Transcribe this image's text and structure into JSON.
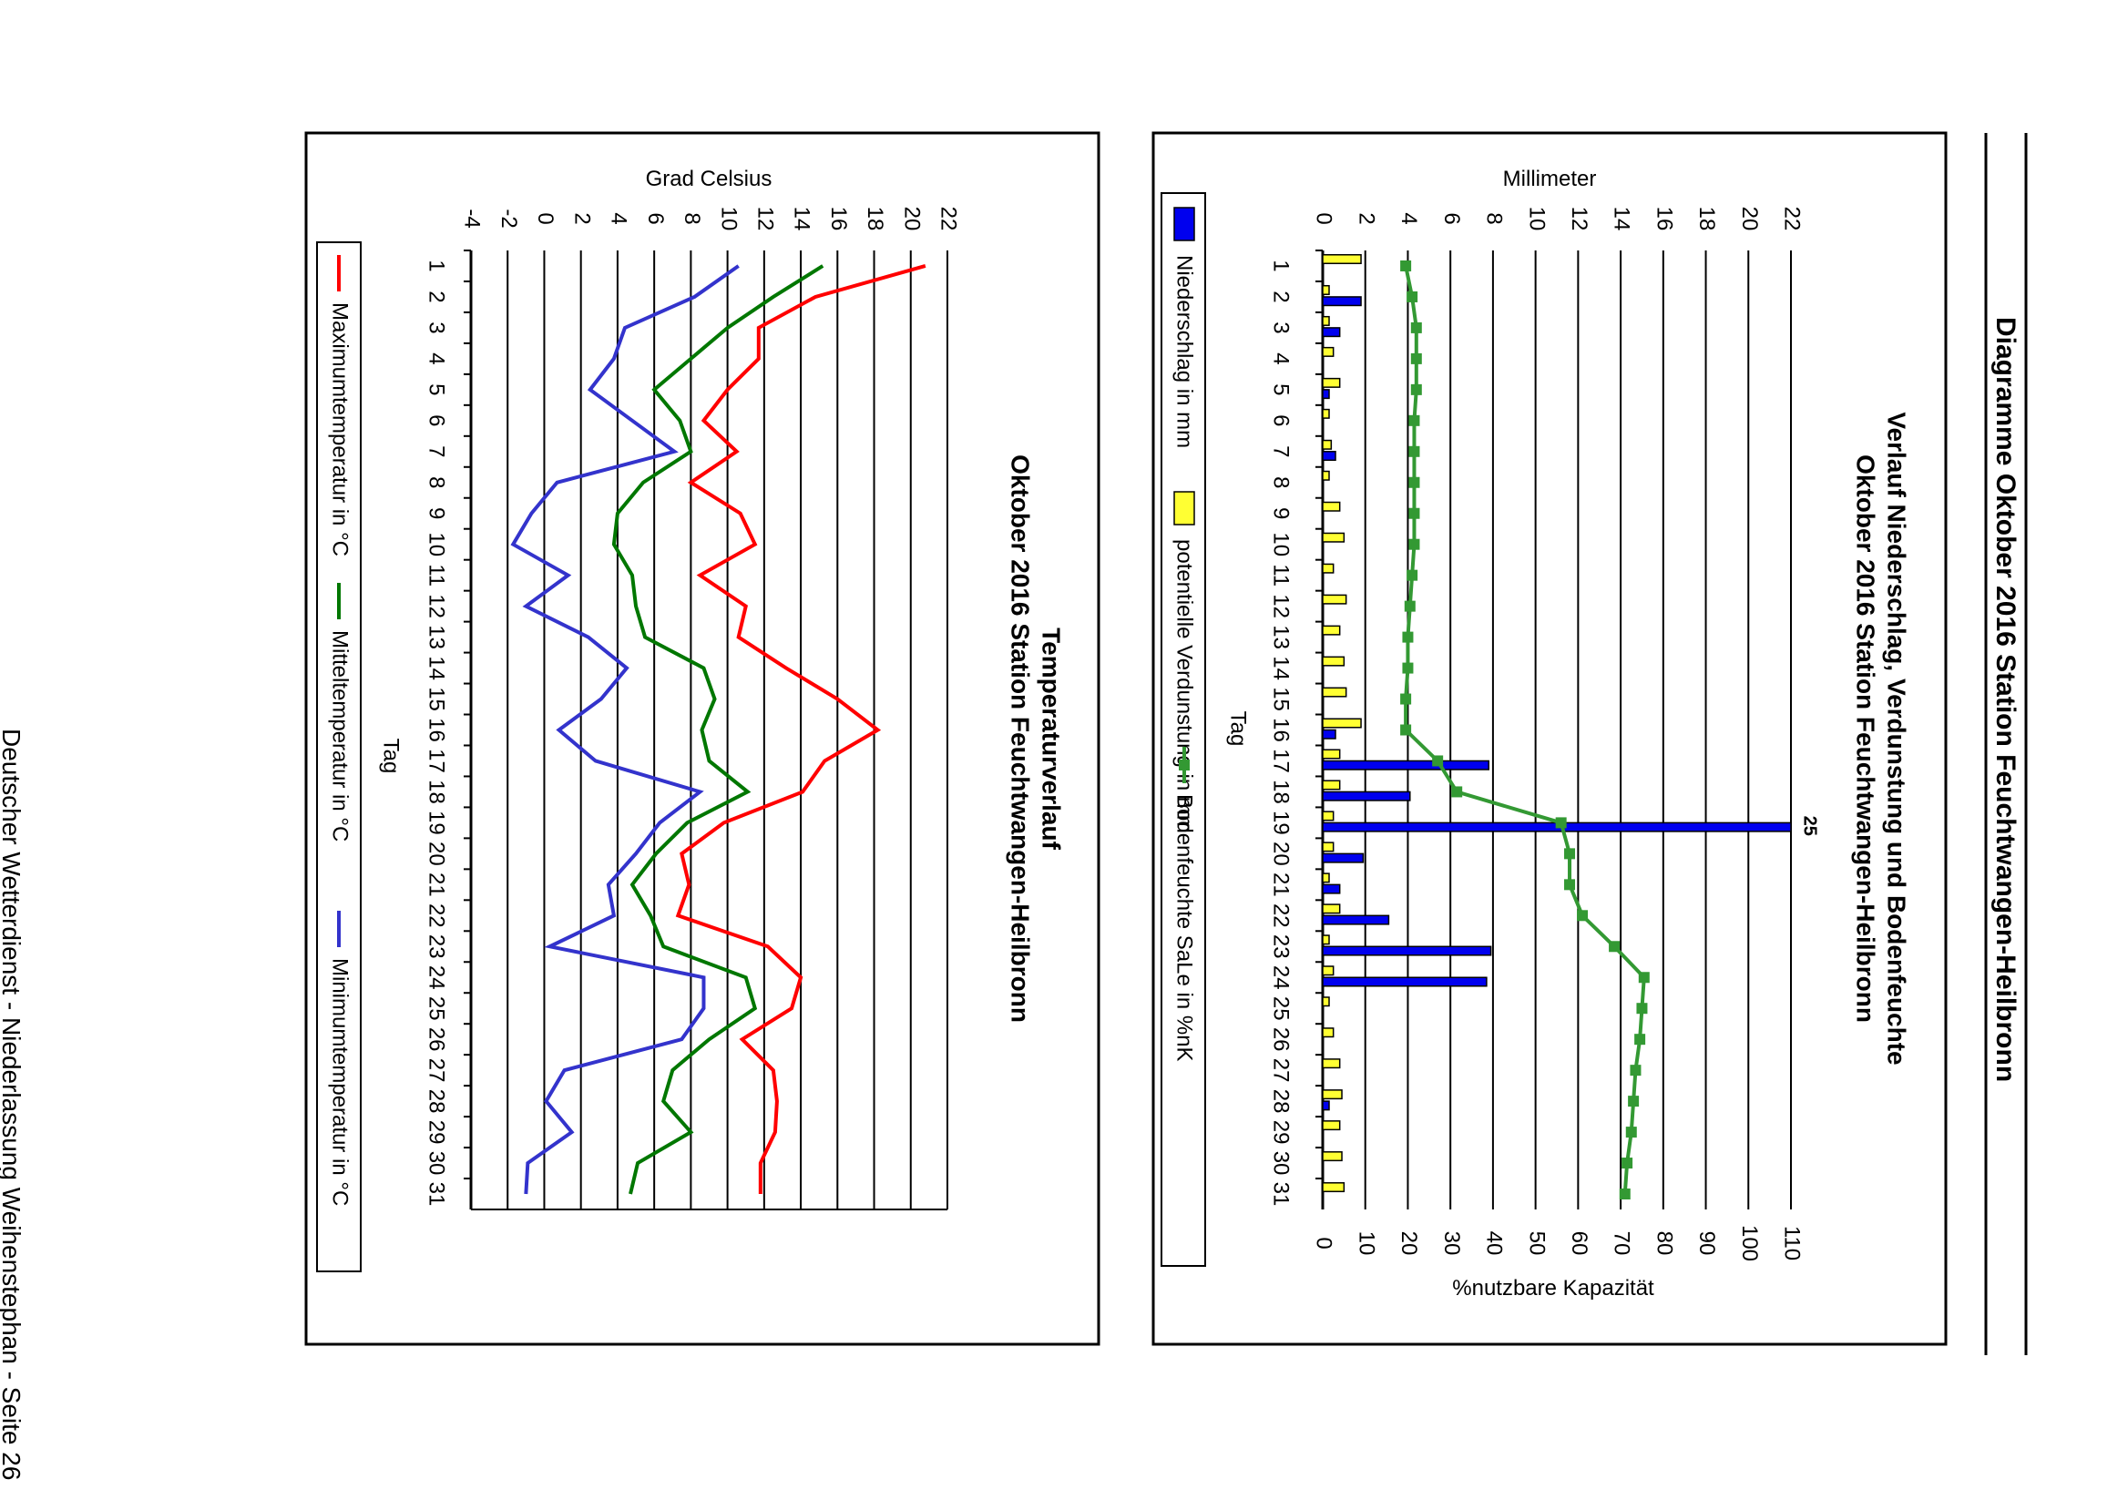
{
  "page": {
    "title": "Diagramme Oktober 2016 Station Feuchtwangen-Heilbronn",
    "footer": "Deutscher Wetterdienst - Niederlassung Weihenstephan - Seite 26"
  },
  "chart_data": [
    {
      "type": "bar",
      "title": "Verlauf Niederschlag, Verdunstung und Bodenfeuchte",
      "subtitle": "Oktober 2016 Station Feuchtwangen-Heilbronn",
      "xlabel": "Tag",
      "ylabel": "Millimeter",
      "y2label": "%nutzbare Kapazität",
      "categories": [
        "1",
        "2",
        "3",
        "4",
        "5",
        "6",
        "7",
        "8",
        "9",
        "10",
        "11",
        "12",
        "13",
        "14",
        "15",
        "16",
        "17",
        "18",
        "19",
        "20",
        "21",
        "22",
        "23",
        "24",
        "25",
        "26",
        "27",
        "28",
        "29",
        "30",
        "31"
      ],
      "ylim": [
        0,
        22
      ],
      "yticks": [
        "0",
        "2",
        "4",
        "6",
        "8",
        "10",
        "12",
        "14",
        "16",
        "18",
        "20",
        "22"
      ],
      "y2lim": [
        0,
        110
      ],
      "y2ticks": [
        "0",
        "10",
        "20",
        "30",
        "40",
        "50",
        "60",
        "70",
        "80",
        "90",
        "100",
        "110"
      ],
      "overflow_label": "25",
      "series": [
        {
          "name": "Niederschlag in mm",
          "kind": "bar",
          "color": "#0000ee",
          "values": [
            0,
            1.8,
            0.8,
            0,
            0.3,
            0,
            0.6,
            0,
            0,
            0,
            0,
            0,
            0,
            0,
            0,
            0.6,
            7.8,
            4.1,
            25,
            1.9,
            0.8,
            3.1,
            7.9,
            7.7,
            0,
            0,
            0,
            0.3,
            0,
            0,
            0
          ]
        },
        {
          "name": "potentielle Verdunstung in mm",
          "kind": "bar",
          "color": "#ffff33",
          "values": [
            1.8,
            0.3,
            0.3,
            0.5,
            0.8,
            0.3,
            0.4,
            0.3,
            0.8,
            1.0,
            0.5,
            1.1,
            0.8,
            1.0,
            1.1,
            1.8,
            0.8,
            0.8,
            0.5,
            0.5,
            0.3,
            0.8,
            0.3,
            0.5,
            0.3,
            0.5,
            0.8,
            0.9,
            0.8,
            0.9,
            1.0
          ]
        },
        {
          "name": "Bodenfeuchte SaLe in %nK",
          "kind": "line",
          "axis": "y2",
          "color": "#339933",
          "values": [
            19.5,
            21,
            22,
            22,
            22,
            21.5,
            21.5,
            21.5,
            21.5,
            21.5,
            21,
            20.5,
            20,
            20,
            19.5,
            19.5,
            27,
            31.5,
            56,
            58,
            58,
            61,
            68.5,
            75.5,
            75,
            74.5,
            73.5,
            73,
            72.5,
            71.5,
            71
          ]
        }
      ],
      "legend": "bottom"
    },
    {
      "type": "line",
      "title": "Temperaturverlauf",
      "subtitle": "Oktober 2016 Station Feuchtwangen-Heilbronn",
      "xlabel": "Tag",
      "ylabel": "Grad Celsius",
      "categories": [
        "1",
        "2",
        "3",
        "4",
        "5",
        "6",
        "7",
        "8",
        "9",
        "10",
        "11",
        "12",
        "13",
        "14",
        "15",
        "16",
        "17",
        "18",
        "19",
        "20",
        "21",
        "22",
        "23",
        "24",
        "25",
        "26",
        "27",
        "28",
        "29",
        "30",
        "31"
      ],
      "ylim": [
        -4,
        22
      ],
      "yticks": [
        "-4",
        "-2",
        "0",
        "2",
        "4",
        "6",
        "8",
        "10",
        "12",
        "14",
        "16",
        "18",
        "20",
        "22"
      ],
      "series": [
        {
          "name": "Maximumtemperatur in °C",
          "color": "#ff0000",
          "values": [
            20.8,
            14.8,
            11.7,
            11.7,
            10.0,
            8.7,
            10.5,
            8.0,
            10.7,
            11.5,
            8.5,
            11.0,
            10.6,
            13.2,
            16.0,
            18.2,
            15.3,
            14.1,
            9.8,
            7.5,
            7.9,
            7.3,
            12.2,
            14.0,
            13.5,
            10.8,
            12.5,
            12.7,
            12.6,
            11.8,
            11.8
          ]
        },
        {
          "name": "Mitteltemperatur in °C",
          "color": "#007700",
          "values": [
            15.2,
            12.5,
            10.0,
            8.0,
            6.0,
            7.4,
            8.0,
            5.4,
            4.0,
            3.8,
            4.8,
            5.0,
            5.5,
            8.7,
            9.3,
            8.6,
            9.0,
            11.1,
            7.8,
            6.1,
            4.8,
            5.8,
            6.5,
            11.0,
            11.5,
            9.0,
            7.0,
            6.5,
            8.0,
            5.1,
            4.7
          ]
        },
        {
          "name": "Minimumtemperatur in °C",
          "color": "#3333cc",
          "values": [
            10.6,
            8.2,
            4.4,
            3.8,
            2.5,
            4.8,
            7.1,
            0.7,
            -0.7,
            -1.7,
            1.3,
            -1.0,
            2.4,
            4.5,
            3.1,
            0.8,
            2.8,
            8.5,
            6.3,
            5.0,
            3.5,
            3.8,
            0.3,
            8.7,
            8.7,
            7.5,
            1.1,
            0.1,
            1.5,
            -0.9,
            -1.0
          ]
        }
      ],
      "legend": "bottom"
    }
  ]
}
